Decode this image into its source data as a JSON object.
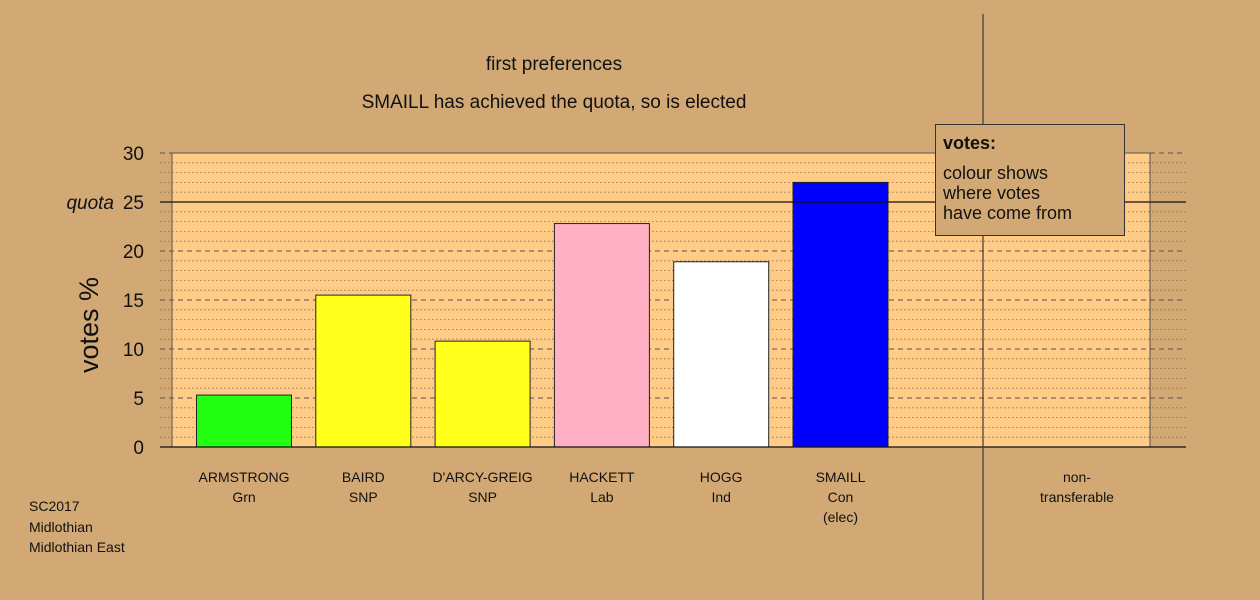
{
  "titles": {
    "line1": "first preferences",
    "line2": "SMAILL has achieved the quota, so is elected"
  },
  "legend": {
    "heading": "votes:",
    "body": "colour shows\nwhere votes\nhave come from"
  },
  "footer": [
    "SC2017",
    "Midlothian",
    "Midlothian East"
  ],
  "chart_data": {
    "type": "bar",
    "ylabel": "votes %",
    "ylim": [
      0,
      30
    ],
    "yticks": [
      0,
      5,
      10,
      15,
      20,
      25,
      30
    ],
    "quota": 25,
    "quota_label": "quota",
    "categories": [
      {
        "name": "ARMSTRONG",
        "party": "Grn",
        "note": "",
        "value": 5.3,
        "color": "#22ff11"
      },
      {
        "name": "BAIRD",
        "party": "SNP",
        "note": "",
        "value": 15.5,
        "color": "#ffff1a"
      },
      {
        "name": "D'ARCY-GREIG",
        "party": "SNP",
        "note": "",
        "value": 10.8,
        "color": "#ffff1a"
      },
      {
        "name": "HACKETT",
        "party": "Lab",
        "note": "",
        "value": 22.8,
        "color": "#ffb0c4"
      },
      {
        "name": "HOGG",
        "party": "Ind",
        "note": "",
        "value": 18.9,
        "color": "#ffffff"
      },
      {
        "name": "SMAILL",
        "party": "Con",
        "note": "(elec)",
        "value": 27.0,
        "color": "#0000ff"
      },
      {
        "name": "non-",
        "party": "transferable",
        "note": "",
        "value": 0,
        "color": "#d2a975"
      }
    ],
    "colors": {
      "plot_background": "#ffcc88",
      "page_background": "#d2a975"
    }
  }
}
